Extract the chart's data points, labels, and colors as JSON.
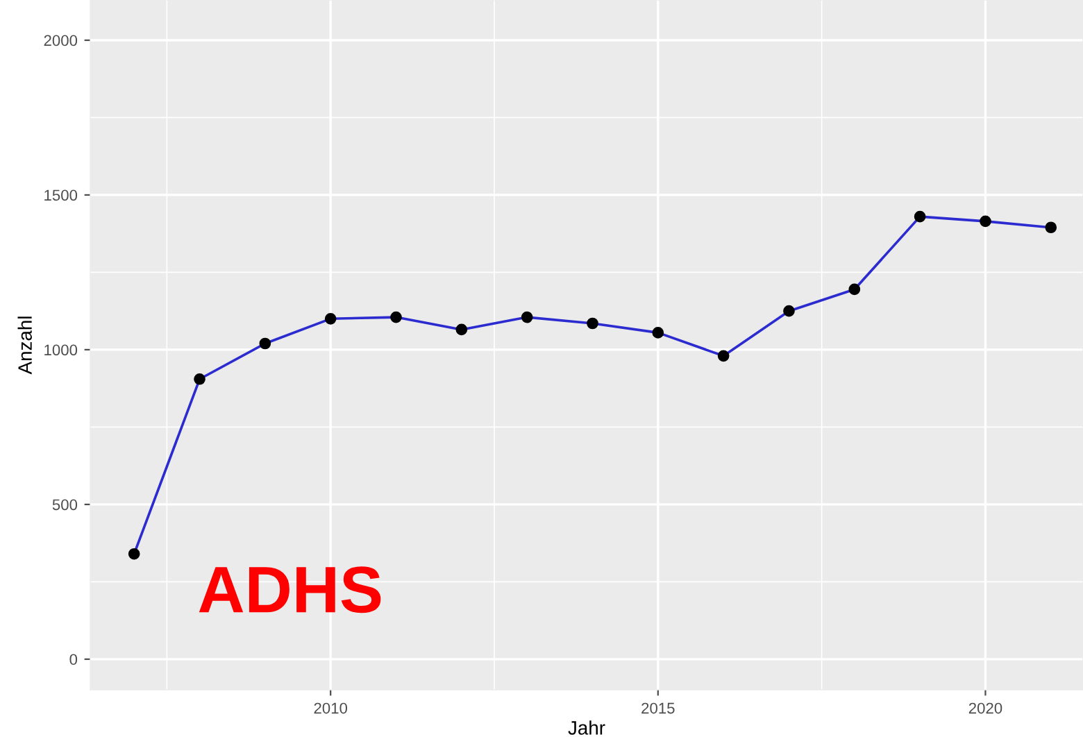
{
  "chart_data": {
    "type": "line",
    "xlabel": "Jahr",
    "ylabel": "Anzahl",
    "x": [
      2007,
      2008,
      2009,
      2010,
      2011,
      2012,
      2013,
      2014,
      2015,
      2016,
      2017,
      2018,
      2019,
      2020,
      2021
    ],
    "series": [
      {
        "color": "#2b2bd0",
        "values": [
          340,
          905,
          1020,
          1100,
          1105,
          1065,
          1105,
          1085,
          1055,
          980,
          1125,
          1195,
          1430,
          1415,
          1395
        ]
      }
    ],
    "marker": "circle",
    "line_style": "solid",
    "xlim": [
      2006.33,
      2021.49
    ],
    "xticks": [
      2010,
      2015,
      2020
    ],
    "ylim": [
      -99,
      2130
    ],
    "yticks": [
      0,
      500,
      1000,
      1500,
      2000
    ],
    "grid": true,
    "annotations": [
      "ADHS"
    ]
  }
}
